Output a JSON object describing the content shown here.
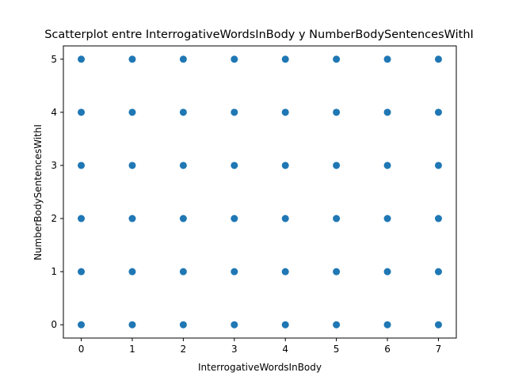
{
  "chart_data": {
    "type": "scatter",
    "title": "Scatterplot entre InterrogativeWordsInBody y NumberBodySentencesWithI",
    "xlabel": "InterrogativeWordsInBody",
    "ylabel": "NumberBodySentencesWithI",
    "xlim": [
      -0.35,
      7.35
    ],
    "ylim": [
      -0.25,
      5.25
    ],
    "xticks": [
      "0",
      "1",
      "2",
      "3",
      "4",
      "5",
      "6",
      "7"
    ],
    "yticks": [
      "0",
      "1",
      "2",
      "3",
      "4",
      "5"
    ],
    "grid": false,
    "marker_color": "#1f77b4",
    "points": [
      [
        0,
        0
      ],
      [
        0,
        1
      ],
      [
        0,
        2
      ],
      [
        0,
        3
      ],
      [
        0,
        4
      ],
      [
        0,
        5
      ],
      [
        1,
        0
      ],
      [
        1,
        1
      ],
      [
        1,
        2
      ],
      [
        1,
        3
      ],
      [
        1,
        4
      ],
      [
        1,
        5
      ],
      [
        2,
        0
      ],
      [
        2,
        1
      ],
      [
        2,
        2
      ],
      [
        2,
        3
      ],
      [
        2,
        4
      ],
      [
        2,
        5
      ],
      [
        3,
        0
      ],
      [
        3,
        1
      ],
      [
        3,
        2
      ],
      [
        3,
        3
      ],
      [
        3,
        4
      ],
      [
        3,
        5
      ],
      [
        4,
        0
      ],
      [
        4,
        1
      ],
      [
        4,
        2
      ],
      [
        4,
        3
      ],
      [
        4,
        4
      ],
      [
        4,
        5
      ],
      [
        5,
        0
      ],
      [
        5,
        1
      ],
      [
        5,
        2
      ],
      [
        5,
        3
      ],
      [
        5,
        4
      ],
      [
        5,
        5
      ],
      [
        6,
        0
      ],
      [
        6,
        1
      ],
      [
        6,
        2
      ],
      [
        6,
        3
      ],
      [
        6,
        4
      ],
      [
        6,
        5
      ],
      [
        7,
        0
      ],
      [
        7,
        1
      ],
      [
        7,
        2
      ],
      [
        7,
        3
      ],
      [
        7,
        4
      ],
      [
        7,
        5
      ]
    ]
  }
}
